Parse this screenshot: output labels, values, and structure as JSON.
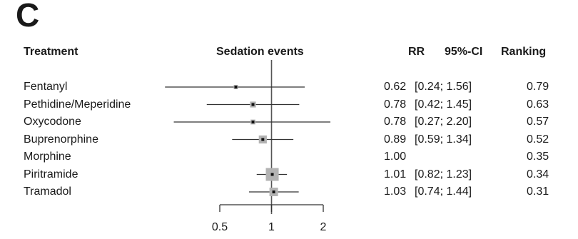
{
  "panel_label": "C",
  "headers": {
    "treatment": "Treatment",
    "outcome": "Sedation events",
    "rr": "RR",
    "ci": "95%-CI",
    "ranking": "Ranking"
  },
  "chart_data": {
    "type": "forest",
    "scale": "log",
    "x_ticks": [
      0.5,
      1,
      2
    ],
    "x_tick_labels": [
      "0.5",
      "1",
      "2"
    ],
    "reference_line": 1,
    "rows": [
      {
        "treatment": "Fentanyl",
        "rr": 0.62,
        "lower": 0.24,
        "upper": 1.56,
        "rr_text": "0.62",
        "ci_text": "[0.24; 1.56]",
        "ranking": "0.79",
        "weight": 0.2
      },
      {
        "treatment": "Pethidine/Meperidine",
        "rr": 0.78,
        "lower": 0.42,
        "upper": 1.45,
        "rr_text": "0.78",
        "ci_text": "[0.42; 1.45]",
        "ranking": "0.63",
        "weight": 0.35
      },
      {
        "treatment": "Oxycodone",
        "rr": 0.78,
        "lower": 0.27,
        "upper": 2.2,
        "rr_text": "0.78",
        "ci_text": "[0.27; 2.20]",
        "ranking": "0.57",
        "weight": 0.25
      },
      {
        "treatment": "Buprenorphine",
        "rr": 0.89,
        "lower": 0.59,
        "upper": 1.34,
        "rr_text": "0.89",
        "ci_text": "[0.59; 1.34]",
        "ranking": "0.52",
        "weight": 0.55
      },
      {
        "treatment": "Morphine",
        "rr": 1.0,
        "lower": null,
        "upper": null,
        "rr_text": "1.00",
        "ci_text": "",
        "ranking": "0.35",
        "weight": 0
      },
      {
        "treatment": "Piritramide",
        "rr": 1.01,
        "lower": 0.82,
        "upper": 1.23,
        "rr_text": "1.01",
        "ci_text": "[0.82; 1.23]",
        "ranking": "0.34",
        "weight": 1.0
      },
      {
        "treatment": "Tramadol",
        "rr": 1.03,
        "lower": 0.74,
        "upper": 1.44,
        "rr_text": "1.03",
        "ci_text": "[0.74; 1.44]",
        "ranking": "0.31",
        "weight": 0.6
      }
    ]
  }
}
